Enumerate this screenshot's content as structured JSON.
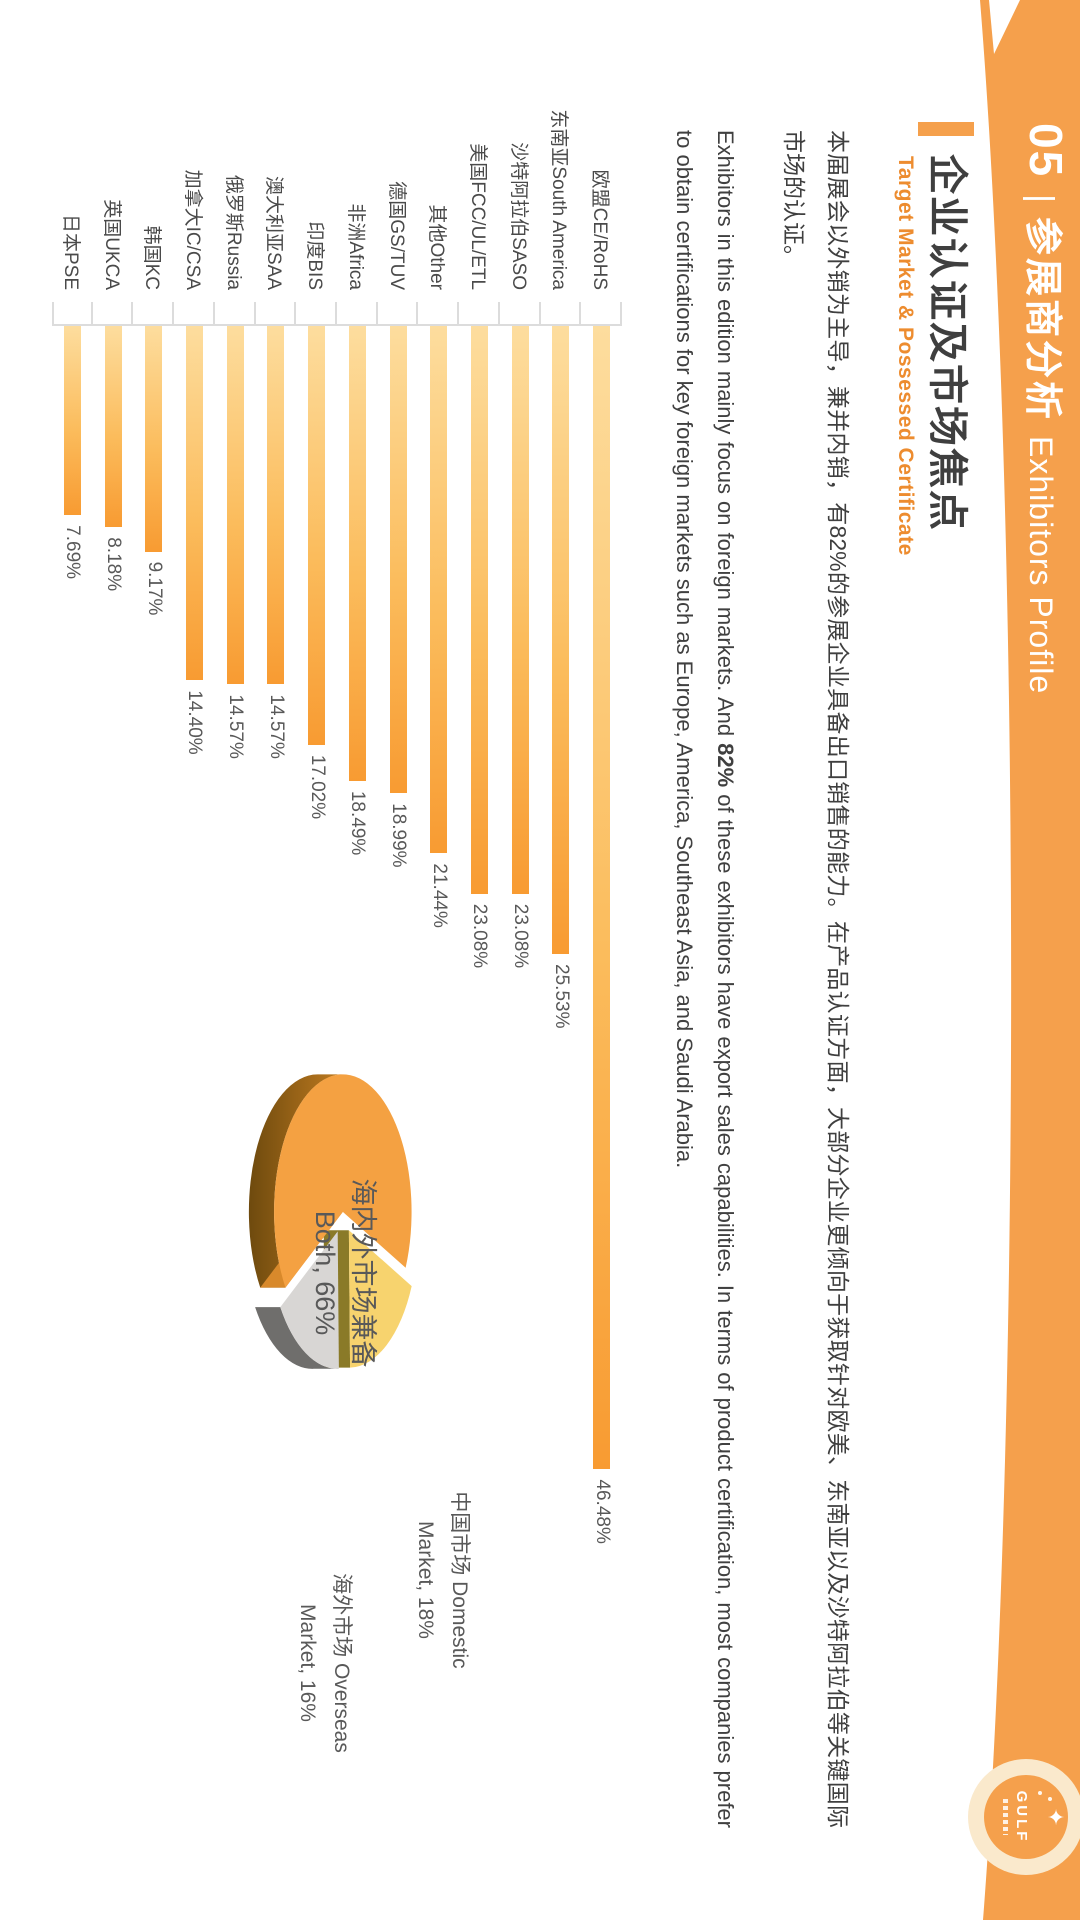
{
  "header": {
    "number": "05",
    "divider": "|",
    "title_cn": "参展商分析",
    "title_en": "Exhibitors Profile",
    "band_color": "#F5A04C"
  },
  "logo": {
    "star_icon": "four-point-star",
    "text": "GULF"
  },
  "section": {
    "title": "企业认证及市场焦点",
    "subtitle": "Target Market & Possessed Certificate",
    "subtitle_color": "#ED8C2F",
    "accent_color": "#F5A04C"
  },
  "paragraph_cn": "本届展会以外销为主导，兼并内销，有82%的参展企业具备出口销售的能力。在产品认证方面，大部分企业更倾向于获取针对欧美、东南亚以及沙特阿拉伯等关键国际市场的认证。",
  "paragraph_en": {
    "before": "Exhibitors in this edition mainly focus on foreign markets. And ",
    "bold": "82%",
    "after": " of these exhibitors have export sales capabilities. In terms of product certification, most companies prefer to obtain certifications for key foreign markets such as Europe, America, Southeast Asia, and Saudi Arabia."
  },
  "chart_data": [
    {
      "type": "bar",
      "orientation": "horizontal",
      "title": "",
      "categories": [
        "欧盟CE/RoHS",
        "东南亚South America",
        "沙特阿拉伯SASO",
        "美国FCC/UL/ETL",
        "其他Other",
        "德国GS/TUV",
        "非洲Africa",
        "印度BIS",
        "澳大利亚SAA",
        "俄罗斯Russia",
        "加拿大IC/CSA",
        "韩国KC",
        "英国UKCA",
        "日本PSE"
      ],
      "values": [
        46.48,
        25.53,
        23.08,
        23.08,
        21.44,
        18.99,
        18.49,
        17.02,
        14.57,
        14.57,
        14.4,
        9.17,
        8.18,
        7.69
      ],
      "value_labels": [
        "46.48%",
        "25.53%",
        "23.08%",
        "23.08%",
        "21.44%",
        "18.99%",
        "18.49%",
        "17.02%",
        "14.57%",
        "14.57%",
        "14.40%",
        "9.17%",
        "8.18%",
        "7.69%"
      ],
      "xlim": [
        0,
        50
      ],
      "grid": false,
      "bar_gradient": [
        "#FDDD9E",
        "#F89B32"
      ],
      "axis_color": "#DCDCDC",
      "legend": "none"
    },
    {
      "type": "pie",
      "style": "3d-exploded",
      "slices": [
        {
          "label_cn": "海内外市场兼备",
          "label_value": "Both, 66%",
          "name": "Both",
          "value": 66,
          "color": "#F4A142"
        },
        {
          "label_cn": "中国市场 Domestic",
          "label_value": "Market, 18%",
          "name": "Domestic Market",
          "value": 18,
          "color": "#F7D36E"
        },
        {
          "label_cn": "海外市场 Overseas",
          "label_value": "Market, 16%",
          "name": "Overseas Market",
          "value": 16,
          "color": "#D8D6D4"
        }
      ],
      "legend": "none",
      "labels_inside": true
    }
  ]
}
